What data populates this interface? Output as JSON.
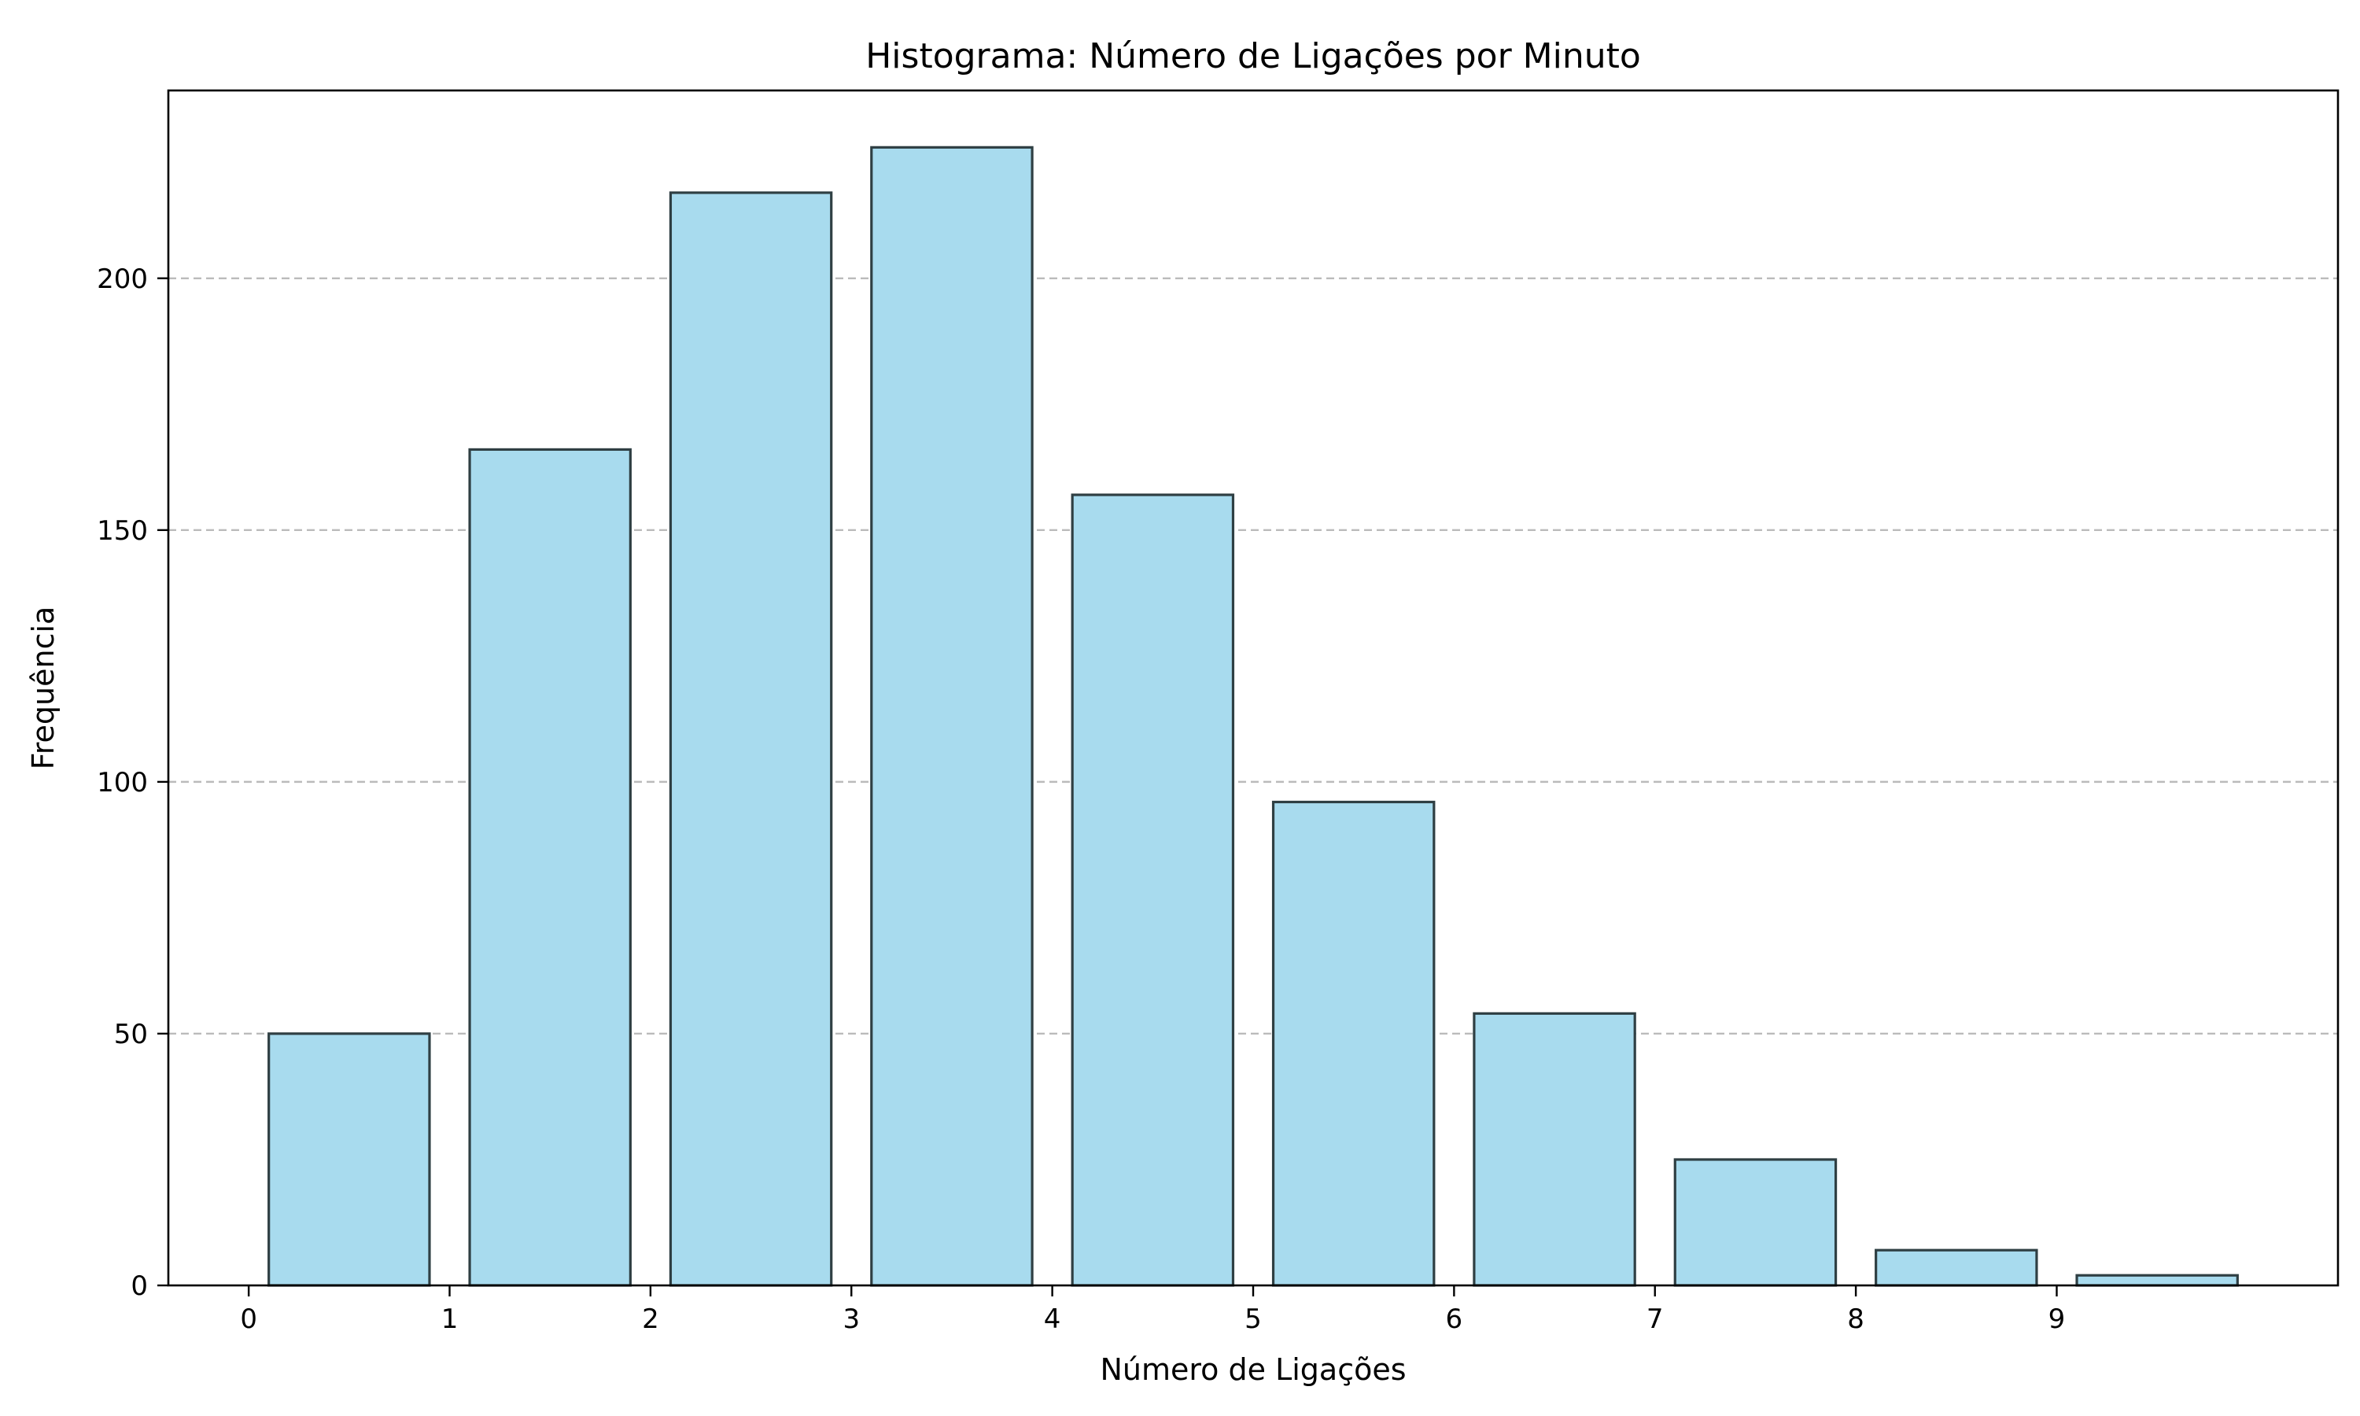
{
  "chart_data": {
    "type": "bar",
    "title": "Histograma: Número de Ligações por Minuto",
    "xlabel": "Número de Ligações",
    "ylabel": "Frequência",
    "bins": [
      0,
      1,
      2,
      3,
      4,
      5,
      6,
      7,
      8,
      9
    ],
    "values": [
      50,
      166,
      217,
      226,
      157,
      96,
      54,
      25,
      7,
      2
    ],
    "bar_width": 0.8,
    "xlim": [
      -0.4,
      10.4
    ],
    "ylim": [
      0,
      237.3
    ],
    "xticks": [
      0,
      1,
      2,
      3,
      4,
      5,
      6,
      7,
      8,
      9
    ],
    "yticks": [
      0,
      50,
      100,
      150,
      200
    ],
    "grid": "y",
    "bar_color": "#a8dbee",
    "edge_color": "#2f3f43"
  }
}
